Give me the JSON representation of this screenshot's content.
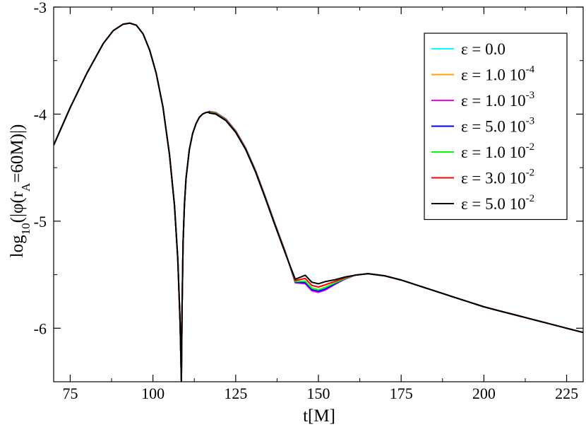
{
  "chart_data": {
    "type": "line",
    "xlabel": "t[M]",
    "ylabel": {
      "prefix": "log",
      "sub1": "10",
      "middle": "(|φ(r",
      "sub2": "A",
      "suffix": "=60M)|)"
    },
    "xlim": [
      70,
      230
    ],
    "ylim": [
      -6.5,
      -3.0
    ],
    "xticks": [
      75,
      100,
      125,
      150,
      175,
      200,
      225
    ],
    "yticks": [
      -6,
      -5,
      -4,
      -3
    ],
    "xtick_labels": [
      "75",
      "100",
      "125",
      "150",
      "175",
      "200",
      "225"
    ],
    "ytick_labels": [
      "-6",
      "-5",
      "-4",
      "-3"
    ],
    "legend_position": "top-right",
    "series": [
      {
        "name": "ε = 0.0",
        "label_main": "ε = 0.0",
        "label_sup": "",
        "color": "#00ffff",
        "dip_min": -5.66,
        "bump_peak": -3.975
      },
      {
        "name": "ε = 1.0 10^-4",
        "label_main": "ε = 1.0 10",
        "label_sup": "-4",
        "color": "#ffa500",
        "dip_min": -5.665,
        "bump_peak": -3.975
      },
      {
        "name": "ε = 1.0 10^-3",
        "label_main": "ε = 1.0 10",
        "label_sup": "-3",
        "color": "#ff00ff",
        "dip_min": -5.665,
        "bump_peak": -3.975
      },
      {
        "name": "ε = 5.0 10^-3",
        "label_main": "ε = 5.0 10",
        "label_sup": "-3",
        "color": "#0000ff",
        "dip_min": -5.655,
        "bump_peak": -3.978
      },
      {
        "name": "ε = 1.0 10^-2",
        "label_main": "ε = 1.0 10",
        "label_sup": "-2",
        "color": "#00ff00",
        "dip_min": -5.64,
        "bump_peak": -3.98
      },
      {
        "name": "ε = 3.0 10^-2",
        "label_main": "ε = 3.0 10",
        "label_sup": "-2",
        "color": "#ff0000",
        "dip_min": -5.615,
        "bump_peak": -3.985
      },
      {
        "name": "ε = 5.0 10^-2",
        "label_main": "ε = 5.0 10",
        "label_sup": "-2",
        "color": "#000000",
        "dip_min": -5.585,
        "bump_peak": -3.99
      }
    ],
    "common_curve": {
      "x": [
        70,
        75,
        80,
        85,
        88,
        91,
        93,
        95,
        97,
        99,
        101,
        103,
        105,
        106.5,
        107.5,
        108.2,
        108.6
      ],
      "y": [
        -4.29,
        -3.94,
        -3.62,
        -3.34,
        -3.22,
        -3.16,
        -3.15,
        -3.17,
        -3.25,
        -3.4,
        -3.62,
        -3.93,
        -4.38,
        -4.85,
        -5.35,
        -5.95,
        -6.5
      ]
    },
    "rise_curve": {
      "x": [
        108.6,
        108.8,
        109.1,
        109.5,
        110,
        111,
        112,
        113,
        114,
        115,
        116,
        117
      ],
      "y": [
        -6.5,
        -5.8,
        -5.2,
        -4.85,
        -4.6,
        -4.33,
        -4.18,
        -4.09,
        -4.03,
        -4.0,
        -3.985,
        -3.98
      ]
    },
    "tail_curve": {
      "x": [
        165,
        170,
        175,
        180,
        185,
        190,
        195,
        200,
        205,
        210,
        215,
        220,
        225,
        230
      ],
      "y": [
        -5.49,
        -5.51,
        -5.55,
        -5.6,
        -5.65,
        -5.7,
        -5.75,
        -5.8,
        -5.84,
        -5.88,
        -5.92,
        -5.96,
        -6.0,
        -6.04
      ]
    }
  }
}
